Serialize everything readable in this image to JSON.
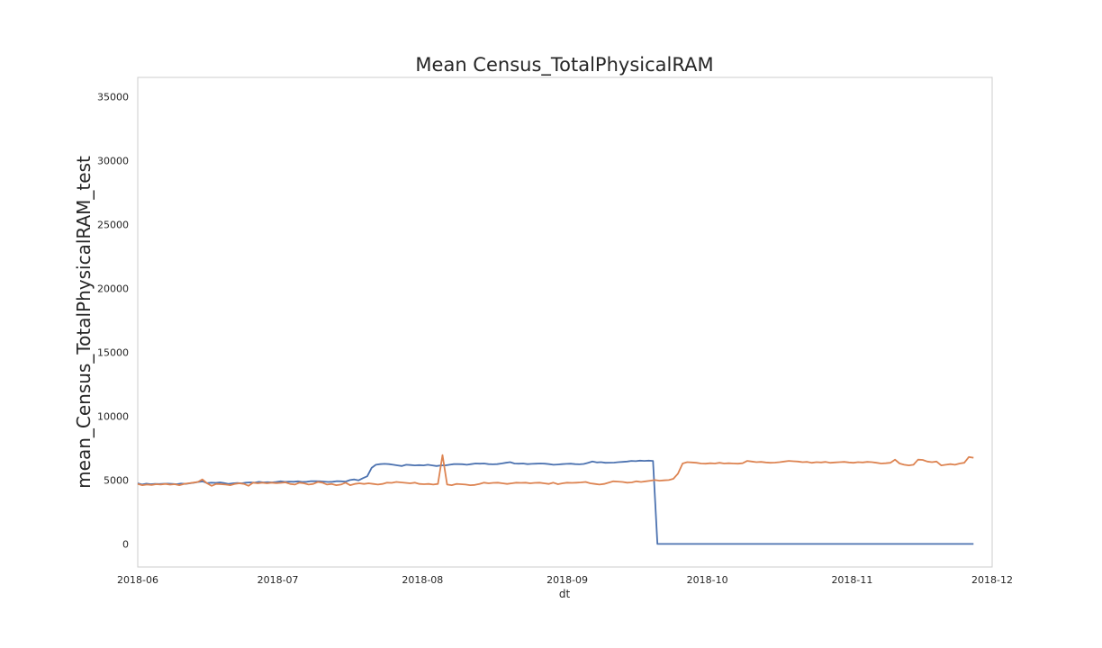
{
  "chart_data": {
    "type": "line",
    "title": "Mean Census_TotalPhysicalRAM",
    "xlabel": "dt",
    "ylabel": "mean_Census_TotalPhysicalRAM_test",
    "x_start": "2018-06-01",
    "x_end": "2018-11-27",
    "xlim": [
      "2018-06-01",
      "2018-12-01"
    ],
    "ylim": [
      -1800,
      36500
    ],
    "x_ticks": [
      "2018-06",
      "2018-07",
      "2018-08",
      "2018-09",
      "2018-10",
      "2018-11",
      "2018-12"
    ],
    "y_ticks": [
      0,
      5000,
      10000,
      15000,
      20000,
      25000,
      30000,
      35000
    ],
    "grid": false,
    "colors": {
      "series1": "#4c72b0",
      "series2": "#dd8452",
      "frame": "#cccccc"
    },
    "series": [
      {
        "values": [
          4750,
          4650,
          4720,
          4680,
          4700,
          4690,
          4710,
          4720,
          4700,
          4680,
          4730,
          4700,
          4750,
          4800,
          4850,
          4900,
          4760,
          4800,
          4780,
          4820,
          4760,
          4700,
          4750,
          4770,
          4750,
          4800,
          4820,
          4800,
          4860,
          4820,
          4830,
          4820,
          4850,
          4900,
          4860,
          4880,
          4870,
          4900,
          4850,
          4870,
          4920,
          4910,
          4900,
          4880,
          4850,
          4870,
          4920,
          4900,
          4880,
          5000,
          5050,
          4980,
          5150,
          5300,
          5950,
          6200,
          6250,
          6270,
          6250,
          6200,
          6150,
          6100,
          6200,
          6180,
          6150,
          6170,
          6150,
          6200,
          6150,
          6100,
          6150,
          6150,
          6200,
          6250,
          6250,
          6240,
          6200,
          6250,
          6300,
          6280,
          6300,
          6250,
          6230,
          6250,
          6300,
          6350,
          6400,
          6300,
          6280,
          6300,
          6250,
          6270,
          6280,
          6300,
          6280,
          6250,
          6200,
          6220,
          6250,
          6270,
          6280,
          6250,
          6230,
          6260,
          6350,
          6450,
          6380,
          6400,
          6350,
          6360,
          6370,
          6400,
          6420,
          6450,
          6500,
          6480,
          6520,
          6500,
          6520,
          6500,
          0,
          0,
          0,
          0,
          0,
          0,
          0,
          0,
          0,
          0,
          0,
          0,
          0,
          0,
          0,
          0,
          0,
          0,
          0,
          0,
          0,
          0,
          0,
          0,
          0,
          0,
          0,
          0,
          0,
          0,
          0,
          0,
          0,
          0,
          0,
          0,
          0,
          0,
          0,
          0,
          0,
          0,
          0,
          0,
          0,
          0,
          0,
          0,
          0,
          0,
          0,
          0,
          0,
          0,
          0,
          0,
          0,
          0,
          0,
          0,
          0,
          0,
          0,
          0,
          0,
          0,
          0,
          0,
          0,
          0,
          0,
          0,
          0,
          0
        ]
      },
      {
        "values": [
          4700,
          4600,
          4650,
          4620,
          4680,
          4650,
          4700,
          4640,
          4680,
          4600,
          4700,
          4750,
          4800,
          4850,
          5050,
          4750,
          4550,
          4700,
          4680,
          4650,
          4600,
          4700,
          4750,
          4700,
          4550,
          4800,
          4750,
          4800,
          4750,
          4800,
          4760,
          4780,
          4820,
          4700,
          4650,
          4800,
          4750,
          4650,
          4700,
          4850,
          4800,
          4650,
          4700,
          4600,
          4650,
          4800,
          4600,
          4700,
          4750,
          4700,
          4750,
          4700,
          4650,
          4700,
          4800,
          4780,
          4850,
          4820,
          4780,
          4750,
          4800,
          4700,
          4680,
          4700,
          4650,
          4700,
          6950,
          4650,
          4600,
          4700,
          4680,
          4650,
          4600,
          4620,
          4700,
          4800,
          4750,
          4780,
          4800,
          4750,
          4700,
          4750,
          4800,
          4780,
          4800,
          4750,
          4780,
          4800,
          4750,
          4700,
          4800,
          4680,
          4750,
          4800,
          4780,
          4800,
          4820,
          4850,
          4750,
          4700,
          4650,
          4700,
          4800,
          4900,
          4880,
          4850,
          4800,
          4820,
          4900,
          4850,
          4900,
          4950,
          5000,
          4950,
          4980,
          5000,
          5100,
          5500,
          6300,
          6400,
          6380,
          6350,
          6300,
          6280,
          6320,
          6300,
          6350,
          6300,
          6320,
          6300,
          6280,
          6320,
          6500,
          6450,
          6400,
          6420,
          6380,
          6350,
          6370,
          6400,
          6450,
          6500,
          6470,
          6450,
          6400,
          6420,
          6350,
          6400,
          6380,
          6420,
          6350,
          6380,
          6400,
          6420,
          6380,
          6350,
          6400,
          6380,
          6420,
          6400,
          6350,
          6300,
          6320,
          6350,
          6600,
          6300,
          6200,
          6150,
          6200,
          6600,
          6580,
          6450,
          6400,
          6450,
          6150,
          6200,
          6250,
          6200,
          6300,
          6350,
          6800,
          6750
        ]
      }
    ]
  }
}
